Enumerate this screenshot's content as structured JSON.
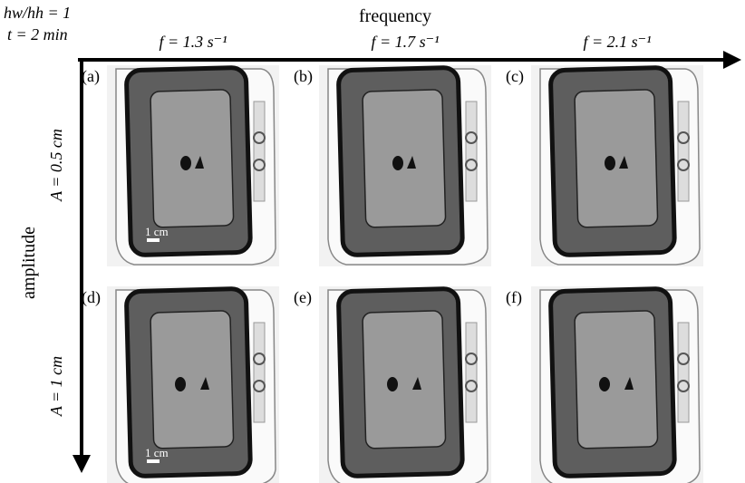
{
  "header": {
    "ratio": "hw/hh = 1",
    "time": "t = 2 min"
  },
  "axes": {
    "x_label": "frequency",
    "y_label": "amplitude"
  },
  "columns": [
    "f = 1.3 s⁻¹",
    "f = 1.7 s⁻¹",
    "f = 2.1 s⁻¹"
  ],
  "rows": [
    "A = 0.5 cm",
    "A = 1 cm"
  ],
  "panels": [
    {
      "label": "(a)",
      "scale_bar": "1 cm"
    },
    {
      "label": "(b)"
    },
    {
      "label": "(c)"
    },
    {
      "label": "(d)",
      "scale_bar": "1 cm"
    },
    {
      "label": "(e)"
    },
    {
      "label": "(f)"
    }
  ]
}
